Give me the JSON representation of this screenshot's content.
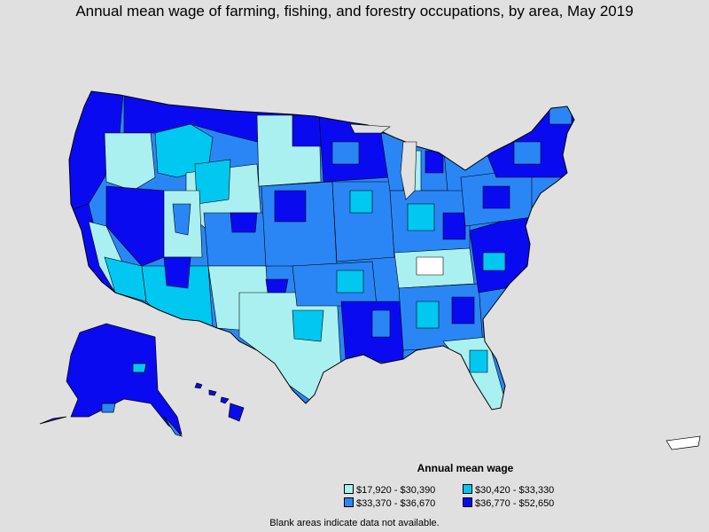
{
  "title": "Annual mean wage of farming, fishing, and forestry occupations, by area, May 2019",
  "legend": {
    "title": "Annual mean wage",
    "items": [
      {
        "label": "$17,920 - $30,390",
        "color": "#aaf0f0"
      },
      {
        "label": "$30,420 - $33,330",
        "color": "#00c8f0"
      },
      {
        "label": "$33,370 - $36,670",
        "color": "#2a86f5"
      },
      {
        "label": "$36,770 - $52,650",
        "color": "#0a0af0"
      }
    ]
  },
  "note": "Blank areas indicate data not available.",
  "colors": {
    "background": "#e0e0e0",
    "no_data": "#ffffff",
    "border": "#000000"
  }
}
